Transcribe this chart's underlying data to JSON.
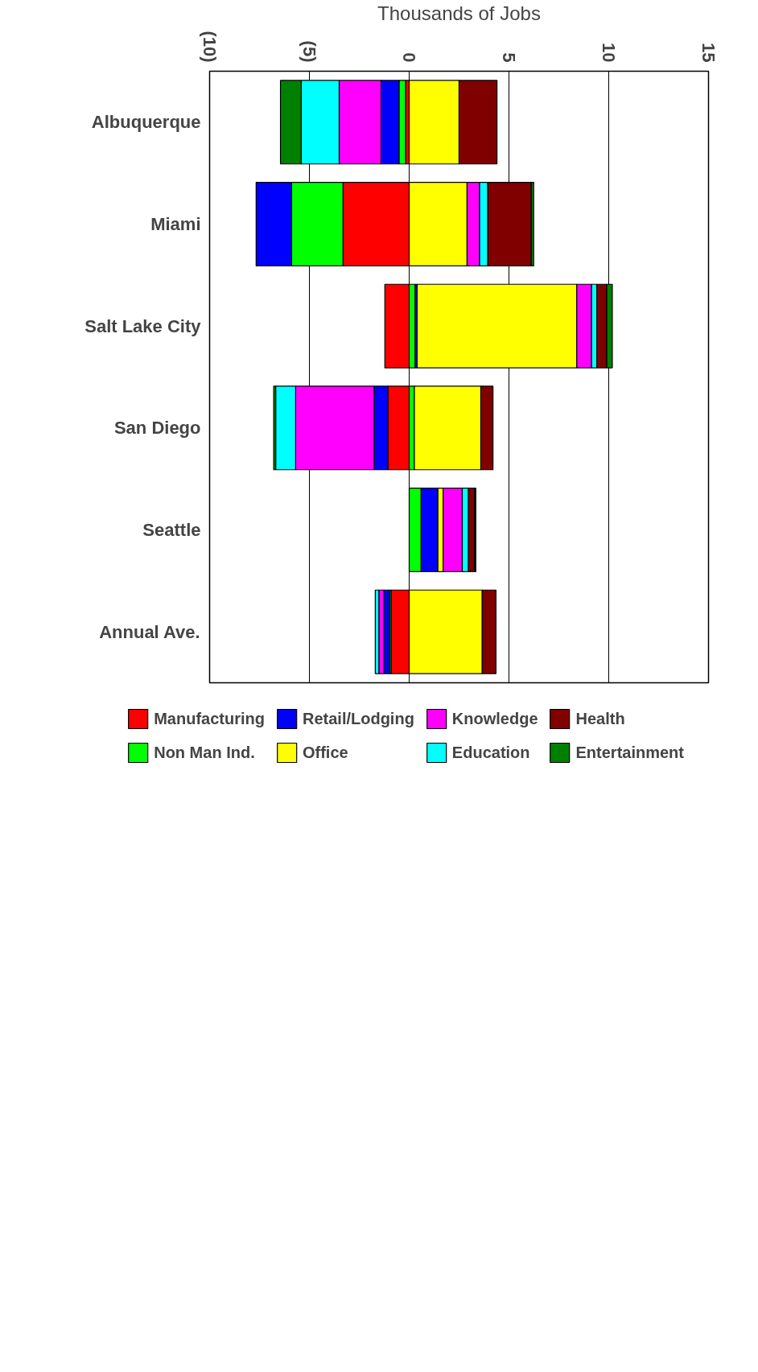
{
  "chart_data": {
    "type": "bar",
    "orientation": "horizontal",
    "stacked": true,
    "xlabel": "Thousands of Jobs",
    "categories": [
      "Albuquerque",
      "Miami",
      "Salt Lake City",
      "San Diego",
      "Seattle",
      "Annual Ave."
    ],
    "series": [
      {
        "name": "Manufacturing",
        "color": "#ff0000",
        "values": [
          -0.18,
          -3.32,
          -1.22,
          -1.07,
          null,
          -0.91
        ]
      },
      {
        "name": "Non Man Ind.",
        "color": "#00ff00",
        "values": [
          -0.33,
          -2.57,
          0.3,
          0.26,
          0.6,
          -0.08
        ]
      },
      {
        "name": "Retail/Lodging",
        "color": "#0000ff",
        "values": [
          -0.9,
          -1.78,
          0.1,
          -0.69,
          0.84,
          -0.28
        ]
      },
      {
        "name": "Office",
        "color": "#ffff00",
        "values": [
          2.5,
          2.9,
          8.0,
          3.33,
          0.26,
          3.66
        ]
      },
      {
        "name": "Knowledge",
        "color": "#ff00ff",
        "values": [
          -2.1,
          0.63,
          0.74,
          -3.93,
          0.96,
          -0.25
        ]
      },
      {
        "name": "Education",
        "color": "#00ffff",
        "values": [
          -1.9,
          0.41,
          0.26,
          -1.0,
          0.31,
          -0.18
        ]
      },
      {
        "name": "Health",
        "color": "#800000",
        "values": [
          1.9,
          2.18,
          0.5,
          0.61,
          0.31,
          0.69
        ]
      },
      {
        "name": "Entertainment",
        "color": "#008000",
        "values": [
          -1.04,
          0.12,
          0.28,
          -0.1,
          0.06,
          null
        ]
      }
    ],
    "xlim": [
      -10,
      15
    ],
    "xticks": [
      {
        "value": -10,
        "label": "(10)"
      },
      {
        "value": -5,
        "label": "(5)"
      },
      0,
      5,
      10,
      15
    ],
    "grid": "x",
    "legend": "bottom"
  }
}
